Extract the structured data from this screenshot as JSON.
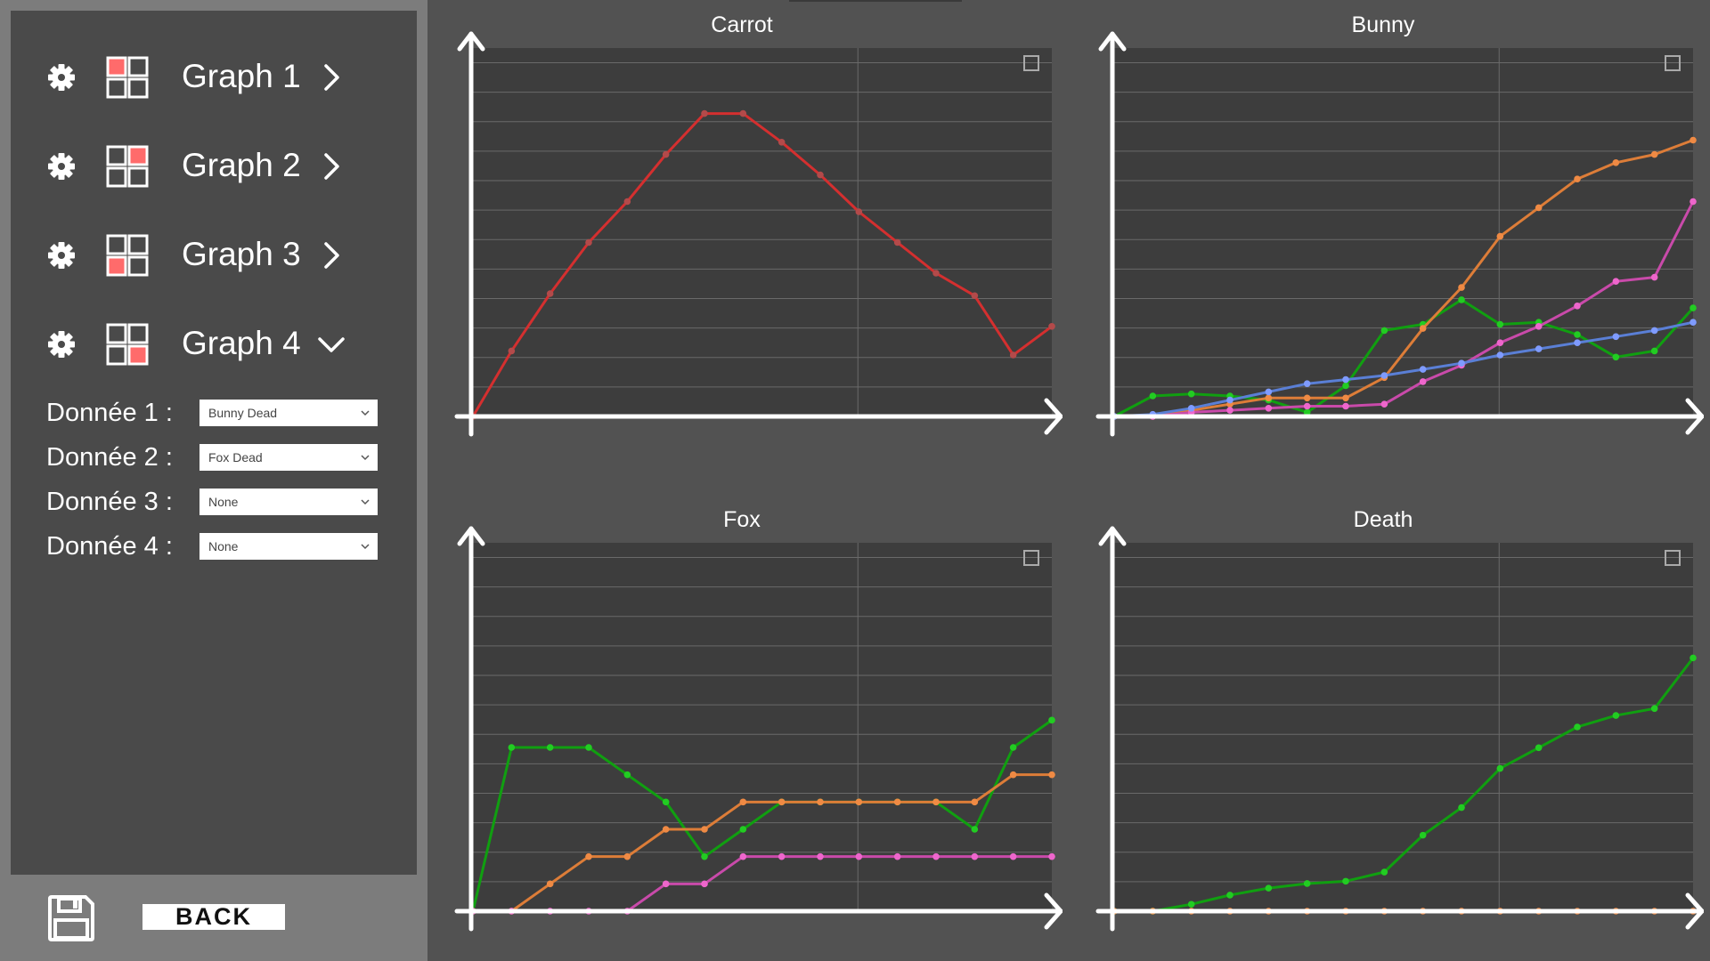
{
  "sidebar": {
    "graphs": [
      {
        "label": "Graph 1",
        "state": "collapsed",
        "highlight_cell": "top-left"
      },
      {
        "label": "Graph 2",
        "state": "collapsed",
        "highlight_cell": "top-right"
      },
      {
        "label": "Graph 3",
        "state": "collapsed",
        "highlight_cell": "bottom-left"
      },
      {
        "label": "Graph 4",
        "state": "expanded",
        "highlight_cell": "bottom-right"
      }
    ],
    "data_rows": [
      {
        "label": "Donnée 1 :",
        "value": "Bunny Dead"
      },
      {
        "label": "Donnée 2 :",
        "value": "Fox Dead"
      },
      {
        "label": "Donnée 3 :",
        "value": "None"
      },
      {
        "label": "Donnée 4 :",
        "value": "None"
      }
    ],
    "icons": {
      "settings": "gear-icon",
      "layout": "grid-layout-icon",
      "collapsed": "chevron-right-icon",
      "expanded": "chevron-down-icon",
      "dropdown": "chevron-down-icon"
    }
  },
  "footer": {
    "save_icon": "floppy-disk-icon",
    "back_label": "BACK"
  },
  "colors": {
    "highlight": "#ff6b6b",
    "red": "#d42f2f",
    "green": "#109f10",
    "orange": "#dd7d38",
    "magenta": "#c94aaa",
    "blue": "#5a7fd6",
    "marker_green": "#22cc22",
    "marker_pink": "#ee66cc"
  },
  "chart_data": [
    {
      "type": "line",
      "title": "Carrot",
      "x": [
        0,
        1,
        2,
        3,
        4,
        5,
        6,
        7,
        8,
        9,
        10,
        11,
        12,
        13,
        14,
        15
      ],
      "ylim": [
        0,
        18
      ],
      "series": [
        {
          "color": "#d42f2f",
          "marker": "#b34a4a",
          "values": [
            0,
            3.2,
            6,
            8.5,
            10.5,
            12.8,
            14.8,
            14.8,
            13.4,
            11.8,
            10,
            8.5,
            7,
            5.9,
            3,
            4.4
          ]
        }
      ]
    },
    {
      "type": "line",
      "title": "Bunny",
      "x": [
        0,
        1,
        2,
        3,
        4,
        5,
        6,
        7,
        8,
        9,
        10,
        11,
        12,
        13,
        14,
        15
      ],
      "ylim": [
        0,
        18
      ],
      "series": [
        {
          "color": "#109f10",
          "marker": "#22cc22",
          "values": [
            0,
            1,
            1.1,
            1,
            0.8,
            0.2,
            1.5,
            4.2,
            4.5,
            5.7,
            4.5,
            4.6,
            4,
            2.9,
            3.2,
            5.3
          ]
        },
        {
          "color": "#dd7d38",
          "marker": "#ef8a44",
          "values": [
            0,
            0,
            0.3,
            0.6,
            0.9,
            0.9,
            0.9,
            1.9,
            4.3,
            6.3,
            8.8,
            10.2,
            11.6,
            12.4,
            12.8,
            13.5
          ]
        },
        {
          "color": "#c94aaa",
          "marker": "#ee66cc",
          "values": [
            0,
            0,
            0.2,
            0.3,
            0.4,
            0.5,
            0.5,
            0.6,
            1.7,
            2.5,
            3.6,
            4.4,
            5.4,
            6.6,
            6.8,
            10.5
          ]
        },
        {
          "color": "#5a7fd6",
          "marker": "#7f9bff",
          "values": [
            0,
            0.1,
            0.4,
            0.8,
            1.2,
            1.6,
            1.8,
            2,
            2.3,
            2.6,
            3,
            3.3,
            3.6,
            3.9,
            4.2,
            4.6
          ]
        }
      ]
    },
    {
      "type": "line",
      "title": "Fox",
      "x": [
        0,
        1,
        2,
        3,
        4,
        5,
        6,
        7,
        8,
        9,
        10,
        11,
        12,
        13,
        14,
        15
      ],
      "ylim": [
        0,
        13.5
      ],
      "series": [
        {
          "color": "#109f10",
          "marker": "#22cc22",
          "values": [
            0,
            6,
            6,
            6,
            5,
            4,
            2,
            3,
            4,
            4,
            4,
            4,
            4,
            3,
            6,
            7
          ]
        },
        {
          "color": "#dd7d38",
          "marker": "#ef8a44",
          "values": [
            0,
            0,
            1,
            2,
            2,
            3,
            3,
            4,
            4,
            4,
            4,
            4,
            4,
            4,
            5,
            5
          ]
        },
        {
          "color": "#c94aaa",
          "marker": "#ee66cc",
          "values": [
            0,
            0,
            0,
            0,
            0,
            1,
            1,
            2,
            2,
            2,
            2,
            2,
            2,
            2,
            2,
            2
          ]
        }
      ]
    },
    {
      "type": "line",
      "title": "Death",
      "x": [
        0,
        1,
        2,
        3,
        4,
        5,
        6,
        7,
        8,
        9,
        10,
        11,
        12,
        13,
        14,
        15
      ],
      "ylim": [
        0,
        16
      ],
      "series": [
        {
          "color": "#109f10",
          "marker": "#22cc22",
          "values": [
            0,
            0,
            0.3,
            0.7,
            1,
            1.2,
            1.3,
            1.7,
            3.3,
            4.5,
            6.2,
            7.1,
            8,
            8.5,
            8.8,
            11
          ]
        },
        {
          "color": "#dd7d38",
          "marker": "#ef8a44",
          "values": [
            0,
            0,
            0,
            0,
            0,
            0,
            0,
            0,
            0,
            0,
            0,
            0,
            0,
            0,
            0,
            0
          ]
        }
      ]
    }
  ]
}
